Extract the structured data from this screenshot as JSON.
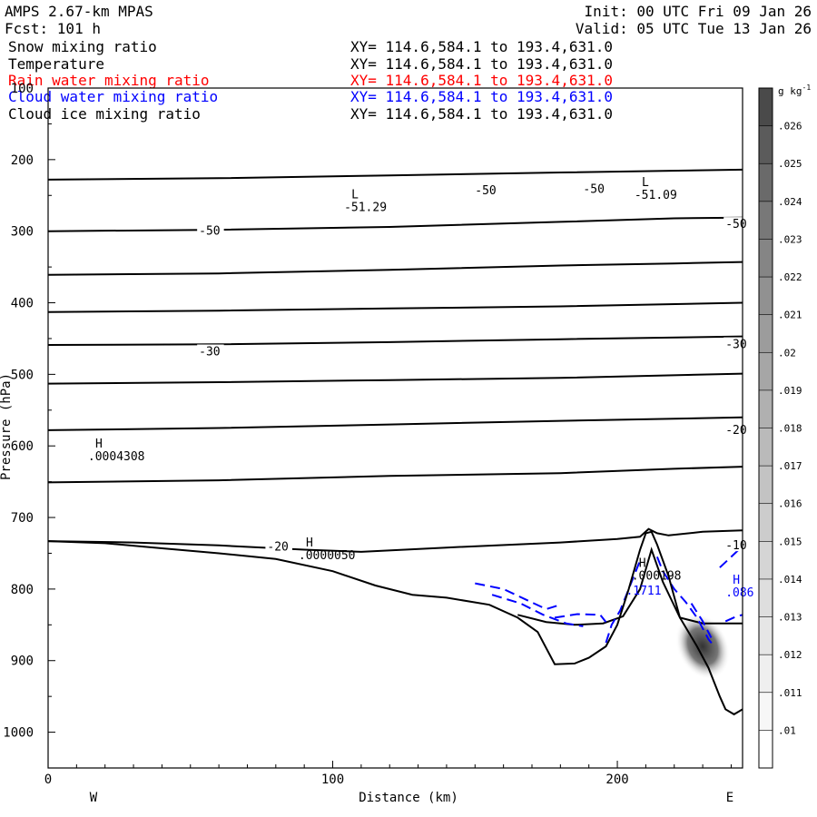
{
  "header": {
    "model": "AMPS 2.67-km MPAS",
    "forecast": "Fcst: 101 h",
    "init": "Init: 00 UTC Fri 09 Jan 26",
    "valid": "Valid: 05 UTC Tue 13 Jan 26",
    "fields": [
      {
        "name": "Snow mixing ratio",
        "range": "XY= 114.6,584.1 to 193.4,631.0",
        "color": "#000000"
      },
      {
        "name": "Temperature",
        "range": "XY= 114.6,584.1 to 193.4,631.0",
        "color": "#000000"
      },
      {
        "name": "Rain water mixing ratio",
        "range": "XY= 114.6,584.1 to 193.4,631.0",
        "color": "#ff0000"
      },
      {
        "name": "Cloud water mixing ratio",
        "range": "XY= 114.6,584.1 to 193.4,631.0",
        "color": "#0000ff"
      },
      {
        "name": "Cloud ice mixing ratio",
        "range": "XY= 114.6,584.1 to 193.4,631.0",
        "color": "#000000"
      }
    ]
  },
  "chart_data": {
    "type": "cross-section",
    "xlabel": "Distance (km)",
    "ylabel": "Pressure (hPa)",
    "xlim": [
      0,
      244
    ],
    "ylim": [
      1050,
      100
    ],
    "y_scale": "linear",
    "x_ticks": [
      0,
      100,
      200
    ],
    "y_ticks": [
      100,
      200,
      300,
      400,
      500,
      600,
      700,
      800,
      900,
      1000
    ],
    "x_end_labels": {
      "left": "W",
      "right": "E"
    },
    "colorbar": {
      "unit": "g kg",
      "unit_exp": "-1",
      "levels": [
        ".01",
        ".011",
        ".012",
        ".013",
        ".014",
        ".015",
        ".016",
        ".017",
        ".018",
        ".019",
        ".02",
        ".021",
        ".022",
        ".023",
        ".024",
        ".025",
        ".026"
      ],
      "colors": [
        "#ffffff",
        "#f7f7f7",
        "#efefef",
        "#e6e6e6",
        "#dedede",
        "#d5d5d5",
        "#cccccc",
        "#c3c3c3",
        "#bababa",
        "#b0b0b0",
        "#a6a6a6",
        "#9c9c9c",
        "#919191",
        "#858585",
        "#787878",
        "#6a6a6a",
        "#5b5b5b",
        "#4a4a4a"
      ]
    },
    "terrain": [
      [
        0,
        733
      ],
      [
        20,
        736
      ],
      [
        40,
        743
      ],
      [
        60,
        750
      ],
      [
        80,
        758
      ],
      [
        100,
        775
      ],
      [
        115,
        795
      ],
      [
        128,
        808
      ],
      [
        140,
        812
      ],
      [
        155,
        822
      ],
      [
        165,
        840
      ],
      [
        172,
        860
      ],
      [
        178,
        905
      ],
      [
        185,
        904
      ],
      [
        190,
        896
      ],
      [
        196,
        880
      ],
      [
        200,
        850
      ],
      [
        204,
        800
      ],
      [
        208,
        745
      ],
      [
        210,
        722
      ],
      [
        212,
        720
      ],
      [
        214,
        738
      ],
      [
        218,
        782
      ],
      [
        222,
        840
      ],
      [
        228,
        880
      ],
      [
        232,
        910
      ],
      [
        236,
        950
      ],
      [
        238,
        968
      ],
      [
        241,
        975
      ],
      [
        244,
        968
      ]
    ],
    "isotherms": [
      {
        "points": [
          [
            0,
            228
          ],
          [
            60,
            226
          ],
          [
            120,
            222
          ],
          [
            180,
            218
          ],
          [
            244,
            214
          ]
        ]
      },
      {
        "points": [
          [
            0,
            300
          ],
          [
            60,
            298
          ],
          [
            120,
            294
          ],
          [
            180,
            287
          ],
          [
            220,
            282
          ],
          [
            244,
            281
          ]
        ]
      },
      {
        "points": [
          [
            0,
            361
          ],
          [
            60,
            359
          ],
          [
            120,
            354
          ],
          [
            180,
            348
          ],
          [
            220,
            345
          ],
          [
            244,
            343
          ]
        ]
      },
      {
        "points": [
          [
            0,
            413
          ],
          [
            60,
            411
          ],
          [
            120,
            408
          ],
          [
            180,
            405
          ],
          [
            244,
            400
          ]
        ]
      },
      {
        "points": [
          [
            0,
            459
          ],
          [
            60,
            458
          ],
          [
            120,
            455
          ],
          [
            180,
            451
          ],
          [
            244,
            447
          ]
        ]
      },
      {
        "points": [
          [
            0,
            513
          ],
          [
            60,
            511
          ],
          [
            120,
            508
          ],
          [
            180,
            505
          ],
          [
            244,
            499
          ]
        ]
      },
      {
        "points": [
          [
            0,
            578
          ],
          [
            60,
            575
          ],
          [
            120,
            570
          ],
          [
            180,
            565
          ],
          [
            220,
            562
          ],
          [
            244,
            560
          ]
        ]
      },
      {
        "points": [
          [
            0,
            651
          ],
          [
            60,
            648
          ],
          [
            120,
            642
          ],
          [
            180,
            638
          ],
          [
            220,
            632
          ],
          [
            244,
            629
          ]
        ]
      },
      {
        "points": [
          [
            0,
            733
          ],
          [
            30,
            735
          ],
          [
            60,
            739
          ],
          [
            90,
            745
          ],
          [
            110,
            748
          ],
          [
            140,
            742
          ],
          [
            180,
            735
          ],
          [
            200,
            730
          ],
          [
            208,
            727
          ],
          [
            211,
            716
          ],
          [
            214,
            722
          ],
          [
            218,
            725
          ],
          [
            230,
            720
          ],
          [
            244,
            718
          ]
        ]
      },
      {
        "points": [
          [
            165,
            836
          ],
          [
            175,
            846
          ],
          [
            185,
            850
          ],
          [
            195,
            848
          ],
          [
            202,
            838
          ],
          [
            208,
            800
          ],
          [
            212,
            745
          ],
          [
            216,
            790
          ],
          [
            222,
            840
          ],
          [
            230,
            848
          ],
          [
            244,
            848
          ]
        ]
      }
    ],
    "contour_labels": [
      {
        "x": 150,
        "p": 246,
        "text": "-50"
      },
      {
        "x": 188,
        "p": 244,
        "text": "-50"
      },
      {
        "x": 238,
        "p": 293,
        "text": "-50"
      },
      {
        "x": 53,
        "p": 302,
        "text": "-50"
      },
      {
        "x": 53,
        "p": 471,
        "text": "-30"
      },
      {
        "x": 238,
        "p": 461,
        "text": "-30"
      },
      {
        "x": 77,
        "p": 744,
        "text": "-20"
      },
      {
        "x": 238,
        "p": 581,
        "text": "-20"
      },
      {
        "x": 238,
        "p": 742,
        "text": "-10"
      }
    ],
    "extrema": [
      {
        "x": 104,
        "p": 272,
        "symbol": "L",
        "value": "-51.29",
        "color": "#000000"
      },
      {
        "x": 206,
        "p": 255,
        "symbol": "L",
        "value": "-51.09",
        "color": "#000000"
      },
      {
        "x": 14,
        "p": 620,
        "symbol": "H",
        "value": ".0004308",
        "color": "#000000"
      },
      {
        "x": 88,
        "p": 758,
        "symbol": "H",
        "value": ".0000050",
        "color": "#000000"
      },
      {
        "x": 205,
        "p": 787,
        "symbol": "H",
        "value": ".000198",
        "color": "#000000"
      },
      {
        "x": 203,
        "p": 808,
        "symbol": "",
        "value": ".1711",
        "color": "#0000ff"
      },
      {
        "x": 238,
        "p": 810,
        "symbol": "H",
        "value": ".086",
        "color": "#0000ff"
      }
    ],
    "cloud_water_dashed": [
      [
        [
          150,
          792
        ],
        [
          160,
          800
        ],
        [
          168,
          815
        ],
        [
          175,
          828
        ],
        [
          180,
          822
        ]
      ],
      [
        [
          156,
          808
        ],
        [
          166,
          820
        ],
        [
          174,
          836
        ],
        [
          182,
          848
        ],
        [
          188,
          852
        ]
      ],
      [
        [
          178,
          840
        ],
        [
          186,
          835
        ],
        [
          194,
          836
        ],
        [
          196,
          846
        ]
      ],
      [
        [
          196,
          875
        ],
        [
          198,
          850
        ],
        [
          201,
          830
        ],
        [
          204,
          800
        ],
        [
          206,
          780
        ],
        [
          208,
          760
        ]
      ],
      [
        [
          214,
          755
        ],
        [
          216,
          775
        ],
        [
          220,
          800
        ],
        [
          224,
          818
        ],
        [
          228,
          840
        ],
        [
          232,
          870
        ],
        [
          234,
          880
        ]
      ],
      [
        [
          226,
          820
        ],
        [
          230,
          845
        ],
        [
          233,
          868
        ]
      ],
      [
        [
          236,
          770
        ],
        [
          240,
          755
        ],
        [
          244,
          740
        ]
      ],
      [
        [
          238,
          845
        ],
        [
          242,
          838
        ],
        [
          244,
          836
        ]
      ]
    ],
    "shading_center": {
      "x": 230,
      "p": 880
    }
  }
}
